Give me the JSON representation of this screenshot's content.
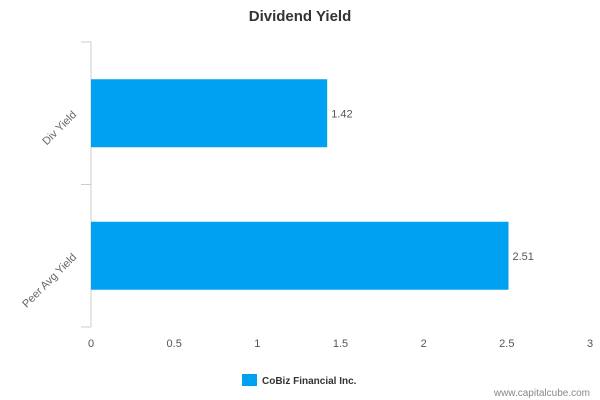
{
  "chart_data": {
    "type": "bar",
    "orientation": "horizontal",
    "title": "Dividend Yield",
    "categories": [
      "Div Yield",
      "Peer Avg Yield"
    ],
    "series": [
      {
        "name": "CoBiz Financial Inc.",
        "values": [
          1.42,
          2.51
        ],
        "value_labels": [
          "1.42",
          "2.51"
        ],
        "color": "#00a1f1"
      }
    ],
    "xlim": [
      0,
      3
    ],
    "x_ticks": [
      0,
      0.5,
      1,
      1.5,
      2,
      2.5,
      3
    ],
    "x_tick_labels": [
      "0",
      "0.5",
      "1",
      "1.5",
      "2",
      "2.5",
      "3"
    ],
    "xlabel": "",
    "ylabel": "",
    "grid": false,
    "legend_position": "bottom-center"
  },
  "watermark": "www.capitalcube.com",
  "colors": {
    "bar": "#00a1f1",
    "axis": "#cccccc",
    "title": "#333333"
  }
}
